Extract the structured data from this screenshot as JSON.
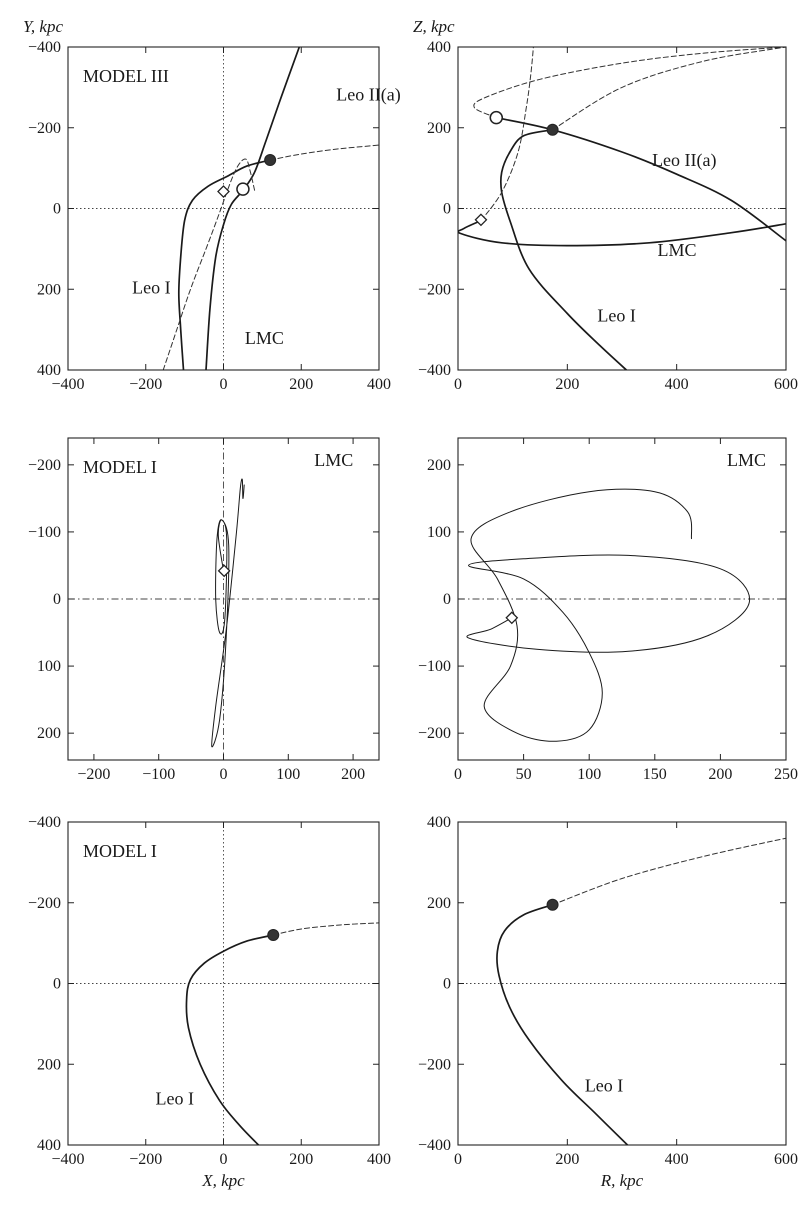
{
  "chart_data": [
    {
      "id": "p1",
      "type": "line",
      "panel_label": "MODEL III",
      "ylabel": "Y, kpc",
      "xlabel": "",
      "xlim": [
        -400,
        400
      ],
      "ylim": [
        -400,
        400
      ],
      "y_inverted": true,
      "xticks": [
        -400,
        -200,
        0,
        200,
        400
      ],
      "xtick_labels": [
        "−400",
        "−200",
        "0",
        "200",
        "400"
      ],
      "yticks": [
        -400,
        -200,
        0,
        200,
        400
      ],
      "ytick_labels": [
        "−400",
        "−200",
        "0",
        "200",
        "400"
      ],
      "zero_lines": "dotted",
      "series": [
        {
          "name": "Leo I",
          "style": "solid",
          "points": [
            [
              120,
              -120
            ],
            [
              60,
              -105
            ],
            [
              10,
              -80
            ],
            [
              -40,
              -55
            ],
            [
              -80,
              -20
            ],
            [
              -100,
              30
            ],
            [
              -110,
              120
            ],
            [
              -115,
              210
            ],
            [
              -110,
              300
            ],
            [
              -103,
              400
            ]
          ]
        },
        {
          "name": "",
          "style": "dashed",
          "points": [
            [
              120,
              -120
            ],
            [
              200,
              -135
            ],
            [
              300,
              -148
            ],
            [
              400,
              -157
            ]
          ]
        },
        {
          "name": "Leo II(a)",
          "style": "solid",
          "points": [
            [
              195,
              -400
            ],
            [
              150,
              -280
            ],
            [
              110,
              -170
            ],
            [
              80,
              -90
            ],
            [
              50,
              -45
            ],
            [
              20,
              -10
            ],
            [
              0,
              40
            ],
            [
              -20,
              120
            ],
            [
              -35,
              250
            ],
            [
              -45,
              400
            ]
          ]
        },
        {
          "name": "LMC",
          "style": "dashed",
          "points": [
            [
              -155,
              400
            ],
            [
              -120,
              300
            ],
            [
              -85,
              200
            ],
            [
              -45,
              100
            ],
            [
              -10,
              10
            ],
            [
              20,
              -70
            ],
            [
              40,
              -110
            ],
            [
              58,
              -122
            ],
            [
              68,
              -95
            ],
            [
              80,
              -45
            ]
          ]
        }
      ],
      "markers": [
        {
          "kind": "filled-circle",
          "x": 120,
          "y": -120
        },
        {
          "kind": "open-circle",
          "x": 50,
          "y": -48
        },
        {
          "kind": "open-diamond",
          "x": 0,
          "y": -42
        }
      ],
      "annotations": [
        {
          "text": "Leo II(a)",
          "x": 290,
          "y": -268
        },
        {
          "text": "Leo I",
          "x": -235,
          "y": 210
        },
        {
          "text": "LMC",
          "x": 55,
          "y": 335
        }
      ]
    },
    {
      "id": "p2",
      "type": "line",
      "panel_label": "",
      "ylabel": "Z, kpc",
      "xlabel": "",
      "xlim": [
        0,
        600
      ],
      "ylim": [
        -400,
        400
      ],
      "y_inverted": false,
      "xticks": [
        0,
        200,
        400,
        600
      ],
      "xtick_labels": [
        "0",
        "200",
        "400",
        "600"
      ],
      "yticks": [
        -400,
        -200,
        0,
        200,
        400
      ],
      "ytick_labels": [
        "−400",
        "−200",
        "0",
        "200",
        "400"
      ],
      "zero_lines": "dotted",
      "series": [
        {
          "name": "Leo II(a)",
          "style": "solid",
          "points": [
            [
              70,
              225
            ],
            [
              173,
              195
            ],
            [
              300,
              140
            ],
            [
              400,
              85
            ],
            [
              500,
              20
            ],
            [
              600,
              -80
            ]
          ]
        },
        {
          "name": "",
          "style": "dashed",
          "points": [
            [
              70,
              225
            ],
            [
              30,
              250
            ],
            [
              50,
              275
            ],
            [
              150,
              320
            ],
            [
              300,
              360
            ],
            [
              450,
              385
            ],
            [
              600,
              400
            ]
          ]
        },
        {
          "name": "Leo I",
          "style": "solid",
          "points": [
            [
              173,
              195
            ],
            [
              120,
              180
            ],
            [
              95,
              140
            ],
            [
              80,
              90
            ],
            [
              80,
              40
            ],
            [
              95,
              -30
            ],
            [
              130,
              -150
            ],
            [
              200,
              -260
            ],
            [
              260,
              -340
            ],
            [
              308,
              -400
            ]
          ]
        },
        {
          "name": "",
          "style": "dashed",
          "points": [
            [
              173,
              195
            ],
            [
              300,
              300
            ],
            [
              450,
              365
            ],
            [
              600,
              400
            ]
          ]
        },
        {
          "name": "LMC",
          "style": "solid",
          "points": [
            [
              42,
              -30
            ],
            [
              10,
              -50
            ],
            [
              5,
              -62
            ],
            [
              80,
              -85
            ],
            [
              200,
              -92
            ],
            [
              350,
              -85
            ],
            [
              500,
              -60
            ],
            [
              600,
              -38
            ]
          ]
        },
        {
          "name": "",
          "style": "dashed",
          "points": [
            [
              42,
              -30
            ],
            [
              80,
              40
            ],
            [
              110,
              140
            ],
            [
              125,
              250
            ],
            [
              133,
              330
            ],
            [
              138,
              400
            ]
          ]
        }
      ],
      "markers": [
        {
          "kind": "filled-circle",
          "x": 173,
          "y": 195
        },
        {
          "kind": "open-circle",
          "x": 70,
          "y": 225
        },
        {
          "kind": "open-diamond",
          "x": 42,
          "y": -28
        }
      ],
      "annotations": [
        {
          "text": "Leo II(a)",
          "x": 355,
          "y": 105
        },
        {
          "text": "LMC",
          "x": 365,
          "y": -118
        },
        {
          "text": "Leo I",
          "x": 255,
          "y": -280
        }
      ]
    },
    {
      "id": "p3",
      "type": "line",
      "panel_label": "MODEL I",
      "ylabel": "",
      "xlabel": "",
      "xlim": [
        -240,
        240
      ],
      "ylim": [
        -240,
        240
      ],
      "y_inverted": true,
      "xticks": [
        -200,
        -100,
        0,
        100,
        200
      ],
      "xtick_labels": [
        "−200",
        "−100",
        "0",
        "100",
        "200"
      ],
      "yticks": [
        -200,
        -100,
        0,
        100,
        200
      ],
      "ytick_labels": [
        "−200",
        "−100",
        "0",
        "100",
        "200"
      ],
      "zero_lines": "dashdot",
      "series": [
        {
          "name": "LMC",
          "style": "solid",
          "points": [
            [
              0,
              -42
            ],
            [
              -8,
              -95
            ],
            [
              -3,
              -118
            ],
            [
              5,
              -90
            ],
            [
              2,
              30
            ],
            [
              -6,
              50
            ],
            [
              -12,
              0
            ],
            [
              -10,
              -90
            ],
            [
              -3,
              -118
            ],
            [
              8,
              -80
            ],
            [
              4,
              60
            ],
            [
              -6,
              180
            ],
            [
              -18,
              220
            ],
            [
              -12,
              160
            ],
            [
              5,
              40
            ],
            [
              20,
              -100
            ],
            [
              26,
              -165
            ],
            [
              29,
              -178
            ],
            [
              30,
              -150
            ],
            [
              32,
              -170
            ]
          ]
        }
      ],
      "markers": [
        {
          "kind": "open-diamond",
          "x": 1,
          "y": -42
        }
      ],
      "annotations": [
        {
          "text": "LMC",
          "x": 140,
          "y": -198
        }
      ]
    },
    {
      "id": "p4",
      "type": "line",
      "panel_label": "",
      "ylabel": "",
      "xlabel": "",
      "xlim": [
        0,
        250
      ],
      "ylim": [
        -240,
        240
      ],
      "y_inverted": false,
      "xticks": [
        0,
        50,
        100,
        150,
        200,
        250
      ],
      "xtick_labels": [
        "0",
        "50",
        "100",
        "150",
        "200",
        "250"
      ],
      "yticks": [
        -200,
        -100,
        0,
        100,
        200
      ],
      "ytick_labels": [
        "−200",
        "−100",
        "0",
        "100",
        "200"
      ],
      "zero_lines": "dashdot",
      "series": [
        {
          "name": "LMC",
          "style": "solid",
          "points": [
            [
              41,
              -28
            ],
            [
              25,
              -45
            ],
            [
              8,
              -58
            ],
            [
              60,
              -75
            ],
            [
              130,
              -78
            ],
            [
              190,
              -55
            ],
            [
              222,
              -5
            ],
            [
              200,
              45
            ],
            [
              130,
              65
            ],
            [
              50,
              60
            ],
            [
              8,
              50
            ],
            [
              50,
              30
            ],
            [
              80,
              -20
            ],
            [
              100,
              -80
            ],
            [
              110,
              -140
            ],
            [
              100,
              -195
            ],
            [
              75,
              -212
            ],
            [
              45,
              -200
            ],
            [
              20,
              -160
            ],
            [
              40,
              -100
            ],
            [
              45,
              -40
            ],
            [
              30,
              30
            ],
            [
              10,
              90
            ],
            [
              40,
              130
            ],
            [
              100,
              160
            ],
            [
              150,
              160
            ],
            [
              175,
              130
            ],
            [
              178,
              90
            ]
          ]
        }
      ],
      "markers": [
        {
          "kind": "open-diamond",
          "x": 41,
          "y": -28
        }
      ],
      "annotations": [
        {
          "text": "LMC",
          "x": 205,
          "y": 198
        }
      ]
    },
    {
      "id": "p5",
      "type": "line",
      "panel_label": "MODEL I",
      "ylabel": "",
      "xlabel": "X, kpc",
      "xlim": [
        -400,
        400
      ],
      "ylim": [
        -400,
        400
      ],
      "y_inverted": true,
      "xticks": [
        -400,
        -200,
        0,
        200,
        400
      ],
      "xtick_labels": [
        "−400",
        "−200",
        "0",
        "200",
        "400"
      ],
      "yticks": [
        -400,
        -200,
        0,
        200,
        400
      ],
      "ytick_labels": [
        "−400",
        "−200",
        "0",
        "200",
        "400"
      ],
      "zero_lines": "dotted",
      "series": [
        {
          "name": "Leo I",
          "style": "solid",
          "points": [
            [
              128,
              -120
            ],
            [
              60,
              -105
            ],
            [
              0,
              -80
            ],
            [
              -50,
              -50
            ],
            [
              -85,
              -10
            ],
            [
              -95,
              40
            ],
            [
              -90,
              110
            ],
            [
              -60,
              200
            ],
            [
              -10,
              290
            ],
            [
              40,
              350
            ],
            [
              90,
              400
            ]
          ]
        },
        {
          "name": "",
          "style": "dashed",
          "points": [
            [
              128,
              -120
            ],
            [
              200,
              -135
            ],
            [
              300,
              -145
            ],
            [
              400,
              -150
            ]
          ]
        }
      ],
      "markers": [
        {
          "kind": "filled-circle",
          "x": 128,
          "y": -120
        }
      ],
      "annotations": [
        {
          "text": "Leo I",
          "x": -175,
          "y": 300
        }
      ]
    },
    {
      "id": "p6",
      "type": "line",
      "panel_label": "",
      "ylabel": "",
      "xlabel": "R, kpc",
      "xlim": [
        0,
        600
      ],
      "ylim": [
        -400,
        400
      ],
      "y_inverted": false,
      "xticks": [
        0,
        200,
        400,
        600
      ],
      "xtick_labels": [
        "0",
        "200",
        "400",
        "600"
      ],
      "yticks": [
        -400,
        -200,
        0,
        200,
        400
      ],
      "ytick_labels": [
        "−400",
        "−200",
        "0",
        "200",
        "400"
      ],
      "zero_lines": "dotted",
      "series": [
        {
          "name": "Leo I",
          "style": "solid",
          "points": [
            [
              173,
              195
            ],
            [
              120,
              170
            ],
            [
              85,
              130
            ],
            [
              72,
              80
            ],
            [
              75,
              20
            ],
            [
              95,
              -60
            ],
            [
              130,
              -140
            ],
            [
              190,
              -240
            ],
            [
              250,
              -320
            ],
            [
              310,
              -400
            ]
          ]
        },
        {
          "name": "",
          "style": "dashed",
          "points": [
            [
              173,
              195
            ],
            [
              300,
              260
            ],
            [
              450,
              315
            ],
            [
              600,
              360
            ]
          ]
        }
      ],
      "markers": [
        {
          "kind": "filled-circle",
          "x": 173,
          "y": 195
        }
      ],
      "annotations": [
        {
          "text": "Leo I",
          "x": 232,
          "y": -268
        }
      ]
    }
  ]
}
